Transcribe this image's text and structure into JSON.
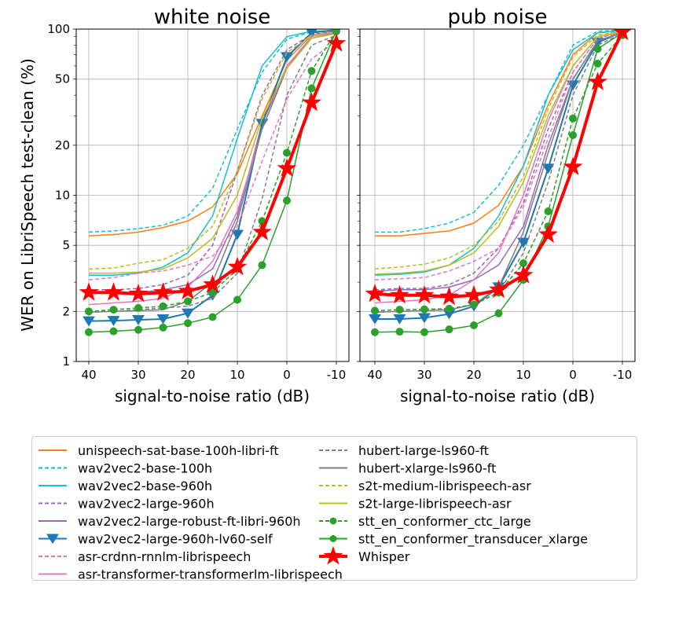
{
  "chart_data": {
    "type": "line",
    "ylabel": "WER on LibriSpeech test-clean (%)",
    "yscale": "log",
    "ylim": [
      1,
      100
    ],
    "yticks": [
      "1",
      "2",
      "5",
      "10",
      "20",
      "50",
      "100"
    ],
    "xticks": [
      "40",
      "30",
      "20",
      "10",
      "0",
      "-10"
    ],
    "grid": true,
    "legend_position": "bottom",
    "x": [
      40,
      35,
      30,
      25,
      20,
      15,
      10,
      5,
      0,
      -5,
      -10
    ],
    "panels": [
      {
        "title": "white noise",
        "xlabel": "signal-to-noise ratio (dB)",
        "series": [
          {
            "name": "unispeech-sat-base-100h-libri-ft",
            "values": [
              5.7,
              5.8,
              6.0,
              6.4,
              7.0,
              8.5,
              13.5,
              30,
              65,
              92,
              97
            ]
          },
          {
            "name": "wav2vec2-base-100h",
            "values": [
              6.0,
              6.1,
              6.3,
              6.6,
              7.5,
              11.0,
              25,
              55,
              87,
              96,
              98
            ]
          },
          {
            "name": "wav2vec2-base-960h",
            "values": [
              3.3,
              3.3,
              3.4,
              3.7,
              4.5,
              7.5,
              22,
              60,
              90,
              97,
              98
            ]
          },
          {
            "name": "wav2vec2-large-960h",
            "values": [
              2.7,
              2.7,
              2.75,
              2.9,
              3.3,
              5.0,
              14,
              40,
              75,
              93,
              97
            ]
          },
          {
            "name": "wav2vec2-large-robust-ft-libri-960h",
            "values": [
              2.6,
              2.6,
              2.6,
              2.7,
              2.9,
              3.6,
              7.5,
              27,
              60,
              88,
              95
            ]
          },
          {
            "name": "wav2vec2-large-960h-lv60-self",
            "values": [
              1.75,
              1.76,
              1.78,
              1.8,
              1.95,
              2.5,
              5.8,
              27,
              68,
              95,
              99
            ]
          },
          {
            "name": "asr-crdnn-rnnlm-librispeech",
            "values": [
              3.1,
              3.2,
              3.4,
              3.5,
              3.8,
              4.3,
              6.5,
              16,
              38,
              66,
              85
            ]
          },
          {
            "name": "asr-transformer-transformerlm-librispeech",
            "values": [
              2.2,
              2.25,
              2.3,
              2.4,
              2.8,
              4.0,
              8.0,
              25,
              60,
              90,
              96
            ]
          },
          {
            "name": "hubert-large-ls960-ft",
            "values": [
              2.0,
              2.0,
              2.05,
              2.1,
              2.15,
              2.4,
              3.4,
              9.5,
              40,
              80,
              92
            ]
          },
          {
            "name": "hubert-xlarge-ls960-ft",
            "values": [
              1.98,
              2.0,
              2.02,
              2.05,
              2.3,
              3.0,
              7.0,
              25,
              58,
              88,
              94
            ]
          },
          {
            "name": "s2t-medium-librispeech-asr",
            "values": [
              3.6,
              3.65,
              3.9,
              4.1,
              4.8,
              6.5,
              14,
              38,
              72,
              92,
              96
            ]
          },
          {
            "name": "s2t-large-librispeech-asr",
            "values": [
              3.4,
              3.4,
              3.45,
              3.6,
              4.2,
              5.5,
              10,
              29,
              58,
              88,
              94
            ]
          },
          {
            "name": "stt_en_conformer_ctc_large",
            "values": [
              2.0,
              2.05,
              2.1,
              2.15,
              2.3,
              2.6,
              3.6,
              7.0,
              18,
              56,
              97
            ]
          },
          {
            "name": "stt_en_conformer_transducer_xlarge",
            "values": [
              1.5,
              1.52,
              1.55,
              1.6,
              1.7,
              1.85,
              2.35,
              3.8,
              9.3,
              44,
              98
            ]
          },
          {
            "name": "Whisper",
            "values": [
              2.6,
              2.6,
              2.55,
              2.6,
              2.65,
              2.9,
              3.7,
              6.0,
              14.5,
              36,
              82
            ]
          }
        ]
      },
      {
        "title": "pub noise",
        "xlabel": "signal-to-noise ratio (dB)",
        "series": [
          {
            "name": "unispeech-sat-base-100h-libri-ft",
            "values": [
              5.7,
              5.7,
              5.9,
              6.1,
              6.8,
              8.7,
              15,
              35,
              70,
              95,
              98
            ]
          },
          {
            "name": "wav2vec2-base-100h",
            "values": [
              6.0,
              6.0,
              6.3,
              6.8,
              7.9,
              11.5,
              20,
              40,
              80,
              97,
              99
            ]
          },
          {
            "name": "wav2vec2-base-960h",
            "values": [
              3.3,
              3.35,
              3.45,
              3.8,
              4.8,
              7.5,
              15,
              40,
              75,
              95,
              98
            ]
          },
          {
            "name": "wav2vec2-large-960h",
            "values": [
              2.7,
              2.75,
              2.75,
              2.9,
              3.4,
              4.8,
              9.0,
              25,
              55,
              88,
              96
            ]
          },
          {
            "name": "wav2vec2-large-robust-ft-libri-960h",
            "values": [
              2.65,
              2.7,
              2.7,
              2.8,
              3.1,
              3.8,
              6.5,
              20,
              50,
              85,
              95
            ]
          },
          {
            "name": "wav2vec2-large-960h-lv60-self",
            "values": [
              1.8,
              1.8,
              1.83,
              1.93,
              2.15,
              2.8,
              5.2,
              14.5,
              46,
              83,
              96
            ]
          },
          {
            "name": "asr-crdnn-rnnlm-librispeech",
            "values": [
              3.1,
              3.15,
              3.2,
              3.5,
              4.0,
              4.8,
              8.5,
              22,
              55,
              88,
              96
            ]
          },
          {
            "name": "asr-transformer-transformerlm-librispeech",
            "values": [
              2.25,
              2.3,
              2.35,
              2.5,
              3.1,
              4.5,
              10,
              28,
              60,
              90,
              97
            ]
          },
          {
            "name": "hubert-large-ls960-ft",
            "values": [
              1.98,
              2.0,
              2.02,
              2.05,
              2.2,
              2.6,
              4.5,
              12,
              40,
              80,
              94
            ]
          },
          {
            "name": "hubert-xlarge-ls960-ft",
            "values": [
              1.98,
              2.0,
              2.02,
              2.05,
              2.2,
              2.8,
              6.0,
              18,
              50,
              85,
              95
            ]
          },
          {
            "name": "s2t-medium-librispeech-asr",
            "values": [
              3.6,
              3.7,
              3.85,
              4.2,
              5.0,
              7.0,
              13,
              33,
              68,
              92,
              97
            ]
          },
          {
            "name": "s2t-large-librispeech-asr",
            "values": [
              3.35,
              3.4,
              3.5,
              3.8,
              4.5,
              6.5,
              12,
              30,
              60,
              90,
              96
            ]
          },
          {
            "name": "stt_en_conformer_ctc_large",
            "values": [
              2.02,
              2.05,
              2.06,
              2.08,
              2.2,
              2.6,
              3.9,
              8.0,
              29,
              62,
              92
            ]
          },
          {
            "name": "stt_en_conformer_transducer_xlarge",
            "values": [
              1.5,
              1.51,
              1.5,
              1.56,
              1.65,
              1.95,
              3.1,
              6.5,
              23,
              76,
              95
            ]
          },
          {
            "name": "Whisper",
            "values": [
              2.55,
              2.5,
              2.5,
              2.45,
              2.5,
              2.7,
              3.3,
              5.8,
              14.8,
              48,
              96
            ]
          }
        ]
      }
    ]
  },
  "styles": [
    {
      "color": "#ff7f0e",
      "dash": false,
      "marker": "none",
      "width": 1.5
    },
    {
      "color": "#17becf",
      "dash": true,
      "marker": "none",
      "width": 1.5
    },
    {
      "color": "#17becf",
      "dash": false,
      "marker": "none",
      "width": 1.5
    },
    {
      "color": "#9467bd",
      "dash": true,
      "marker": "none",
      "width": 1.5
    },
    {
      "color": "#9467bd",
      "dash": false,
      "marker": "none",
      "width": 1.5
    },
    {
      "color": "#1f77b4",
      "dash": false,
      "marker": "triangle-down",
      "width": 2
    },
    {
      "color": "#e377c2",
      "dash": true,
      "marker": "none",
      "width": 1.5
    },
    {
      "color": "#e377c2",
      "dash": false,
      "marker": "none",
      "width": 1.5
    },
    {
      "color": "#7f7f7f",
      "dash": true,
      "marker": "none",
      "width": 1.5
    },
    {
      "color": "#7f7f7f",
      "dash": false,
      "marker": "none",
      "width": 1.5
    },
    {
      "color": "#bcbd22",
      "dash": true,
      "marker": "none",
      "width": 1.5
    },
    {
      "color": "#bcbd22",
      "dash": false,
      "marker": "none",
      "width": 1.5
    },
    {
      "color": "#2ca02c",
      "dash": true,
      "marker": "circle",
      "width": 1.5
    },
    {
      "color": "#2ca02c",
      "dash": false,
      "marker": "circle",
      "width": 1.5
    },
    {
      "color": "#ff0000",
      "dash": false,
      "marker": "star",
      "width": 4
    }
  ]
}
